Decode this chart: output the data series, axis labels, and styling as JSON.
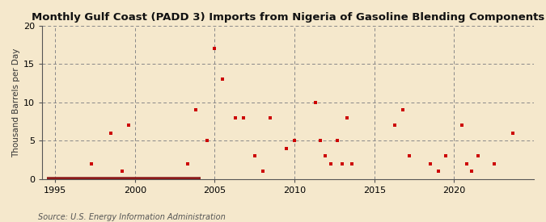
{
  "title": "Monthly Gulf Coast (PADD 3) Imports from Nigeria of Gasoline Blending Components",
  "ylabel": "Thousand Barrels per Day",
  "source": "Source: U.S. Energy Information Administration",
  "background_color": "#f5e8cc",
  "marker_color": "#cc0000",
  "xlim": [
    1994.2,
    2025.0
  ],
  "ylim": [
    0,
    20
  ],
  "yticks": [
    0,
    5,
    10,
    15,
    20
  ],
  "xticks": [
    1995,
    2000,
    2005,
    2010,
    2015,
    2020
  ],
  "data_x": [
    1997.3,
    1998.5,
    1999.2,
    1999.6,
    2003.3,
    2003.8,
    2004.5,
    2005.0,
    2005.5,
    2006.3,
    2006.8,
    2007.5,
    2008.0,
    2008.5,
    2009.5,
    2010.0,
    2011.3,
    2011.6,
    2011.9,
    2012.3,
    2012.7,
    2013.0,
    2013.3,
    2013.6,
    2016.3,
    2016.8,
    2017.2,
    2018.5,
    2019.0,
    2019.5,
    2020.5,
    2020.8,
    2021.1,
    2021.5,
    2022.5,
    2023.7
  ],
  "data_y": [
    2,
    6,
    1,
    7,
    2,
    9,
    5,
    17,
    13,
    8,
    8,
    3,
    1,
    8,
    4,
    5,
    10,
    5,
    3,
    2,
    5,
    2,
    8,
    2,
    7,
    9,
    3,
    2,
    1,
    3,
    7,
    2,
    1,
    3,
    2,
    6
  ],
  "zero_line_x_start": 1994.5,
  "zero_line_x_end": 2004.1,
  "title_fontsize": 9.5,
  "label_fontsize": 7.5,
  "tick_fontsize": 8,
  "source_fontsize": 7
}
